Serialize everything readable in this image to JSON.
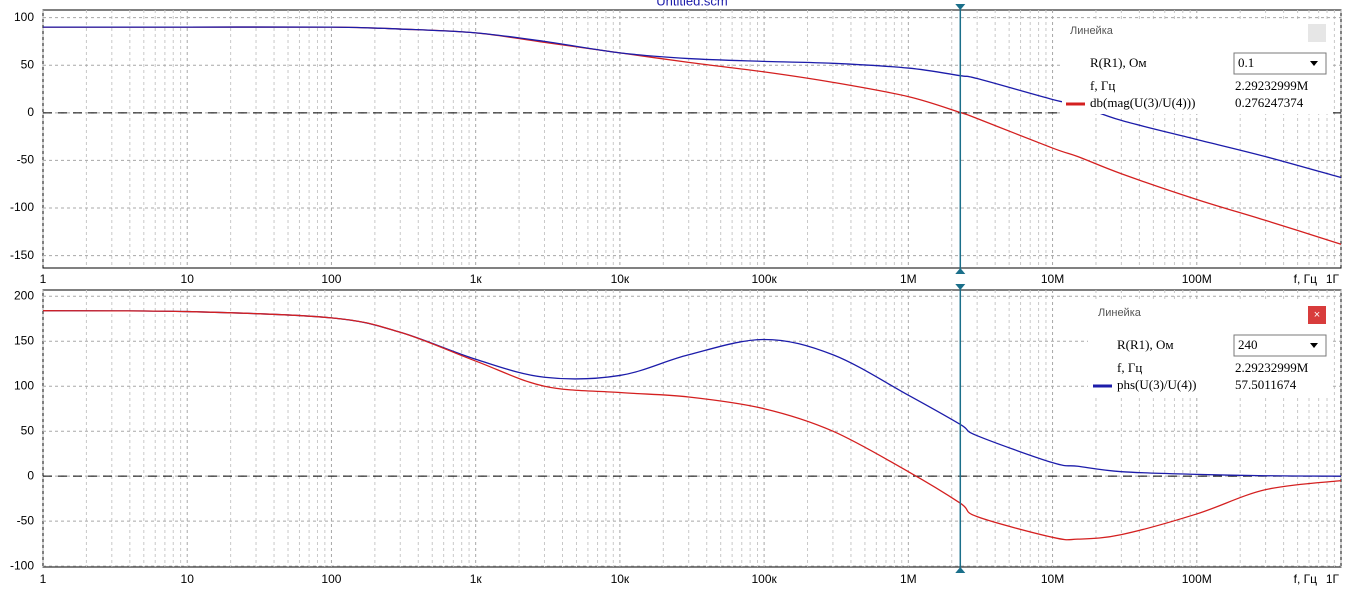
{
  "chart_data": [
    {
      "type": "line",
      "title": "Untitled.scm",
      "xscale": "log",
      "xlim": [
        1,
        1000000000
      ],
      "ylim": [
        -163,
        108
      ],
      "xlabel": "f, Гц",
      "xticks": [
        1,
        10,
        100,
        {
          "value": 1000,
          "label": "1к"
        },
        {
          "value": 10000,
          "label": "10к"
        },
        {
          "value": 100000,
          "label": "100к"
        },
        {
          "value": 1000000,
          "label": "1M"
        },
        {
          "value": 10000000,
          "label": "10M"
        },
        {
          "value": 100000000,
          "label": "100M"
        },
        {
          "value": 1000000000,
          "label": "1Г"
        }
      ],
      "yticks": [
        -150,
        -100,
        -50,
        0,
        50,
        100
      ],
      "grid": true,
      "zero_line": true,
      "x": [
        1,
        10,
        100,
        300,
        1000,
        3000,
        10000,
        30000,
        100000,
        300000,
        1000000,
        2292329.99,
        3000000,
        10000000,
        15000000,
        30000000,
        100000000,
        300000000,
        1000000000
      ],
      "series": [
        {
          "name": "db(mag(U(3)/U(4)))",
          "color": "#d42020",
          "values": [
            90,
            90,
            90,
            88,
            84,
            74,
            63,
            53,
            43,
            32,
            17,
            0.276247374,
            -6,
            -37,
            -46,
            -64,
            -91,
            -113,
            -138
          ]
        },
        {
          "color": "#1c1caa",
          "values": [
            90,
            90,
            90,
            88,
            84,
            75,
            63,
            57,
            54,
            52,
            47,
            39,
            36,
            14,
            8,
            -8,
            -28,
            -46,
            -68
          ]
        }
      ],
      "cursor": {
        "value": 2292329.99,
        "label": "2.29232999M"
      },
      "panel": {
        "title": "Линейка",
        "param_label": "R(R1), Ом",
        "param_value": 0.1,
        "x_label": "f, Гц",
        "y_value": 0.276247374
      }
    },
    {
      "type": "line",
      "xscale": "log",
      "xlim": [
        1,
        1000000000
      ],
      "ylim": [
        -101,
        207
      ],
      "xlabel": "f, Гц",
      "xticks": [
        1,
        10,
        100,
        {
          "value": 1000,
          "label": "1к"
        },
        {
          "value": 10000,
          "label": "10к"
        },
        {
          "value": 100000,
          "label": "100к"
        },
        {
          "value": 1000000,
          "label": "1M"
        },
        {
          "value": 10000000,
          "label": "10M"
        },
        {
          "value": 100000000,
          "label": "100M"
        },
        {
          "value": 1000000000,
          "label": "1Г"
        }
      ],
      "yticks": [
        -100,
        -50,
        0,
        50,
        100,
        150,
        200
      ],
      "grid": true,
      "zero_line": true,
      "x": [
        1,
        10,
        100,
        300,
        1000,
        3000,
        10000,
        30000,
        100000,
        300000,
        1000000,
        2292329.99,
        3000000,
        10000000,
        15000000,
        30000000,
        100000000,
        300000000,
        1000000000
      ],
      "series": [
        {
          "name": "phs(U(3)/U(4))",
          "color": "#1c1caa",
          "values": [
            184,
            183,
            176,
            160,
            130,
            110,
            112,
            135,
            152,
            135,
            90,
            57.5011674,
            45,
            15,
            11,
            5,
            2,
            0.5,
            0
          ]
        },
        {
          "color": "#d42020",
          "values": [
            184,
            183,
            176,
            160,
            128,
            100,
            93,
            88,
            75,
            50,
            5,
            -30,
            -45,
            -68,
            -70,
            -65,
            -42,
            -15,
            -5
          ]
        }
      ],
      "cursor": {
        "value": 2292329.99,
        "label": "2.29232999M"
      },
      "panel": {
        "title": "Линейка",
        "param_label": "R(R1), Ом",
        "param_value": 240,
        "x_label": "f, Гц",
        "y_value": 57.5011674
      }
    }
  ]
}
